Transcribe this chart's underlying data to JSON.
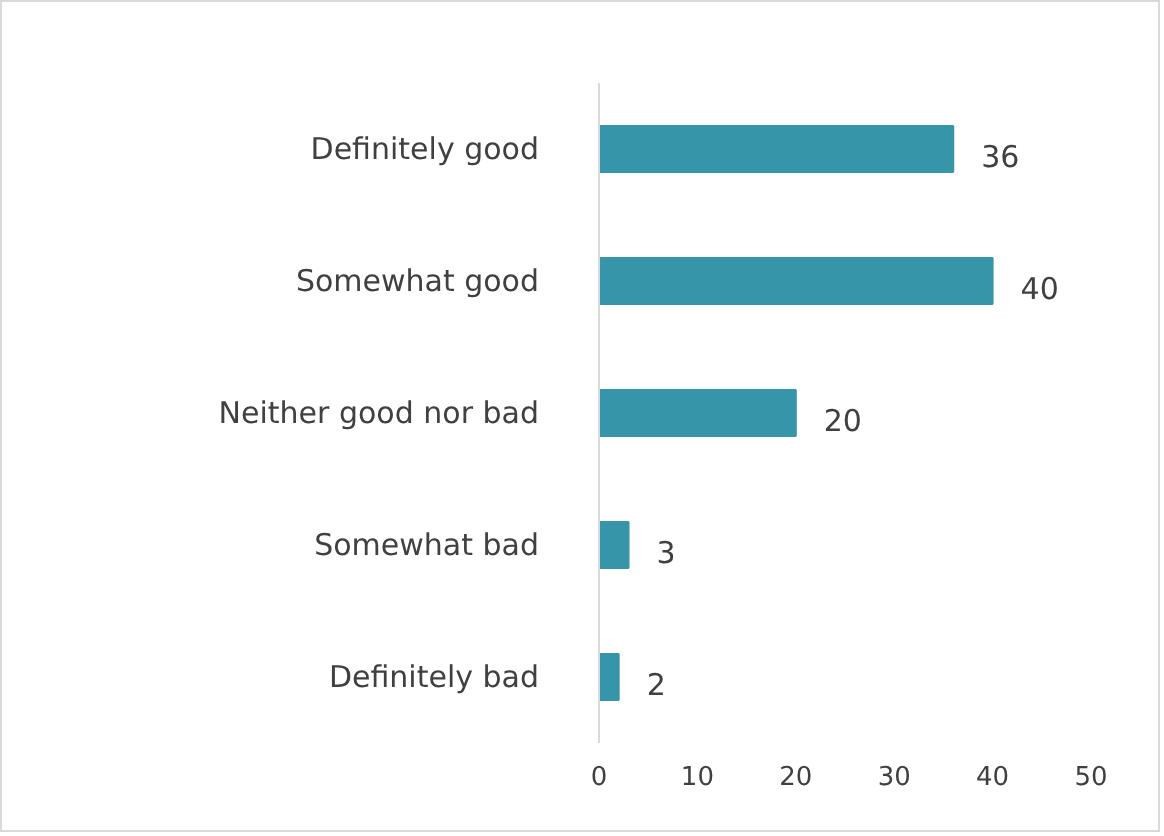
{
  "chart_data": {
    "type": "bar",
    "orientation": "horizontal",
    "categories": [
      "Definitely good",
      "Somewhat good",
      "Neither good nor bad",
      "Somewhat bad",
      "Definitely bad"
    ],
    "values": [
      36,
      40,
      20,
      3,
      2
    ],
    "color": "#3795aa",
    "xlim": [
      0,
      50
    ],
    "xticks": [
      0,
      10,
      20,
      30,
      40,
      50
    ],
    "data_labels": true,
    "grid": false
  }
}
